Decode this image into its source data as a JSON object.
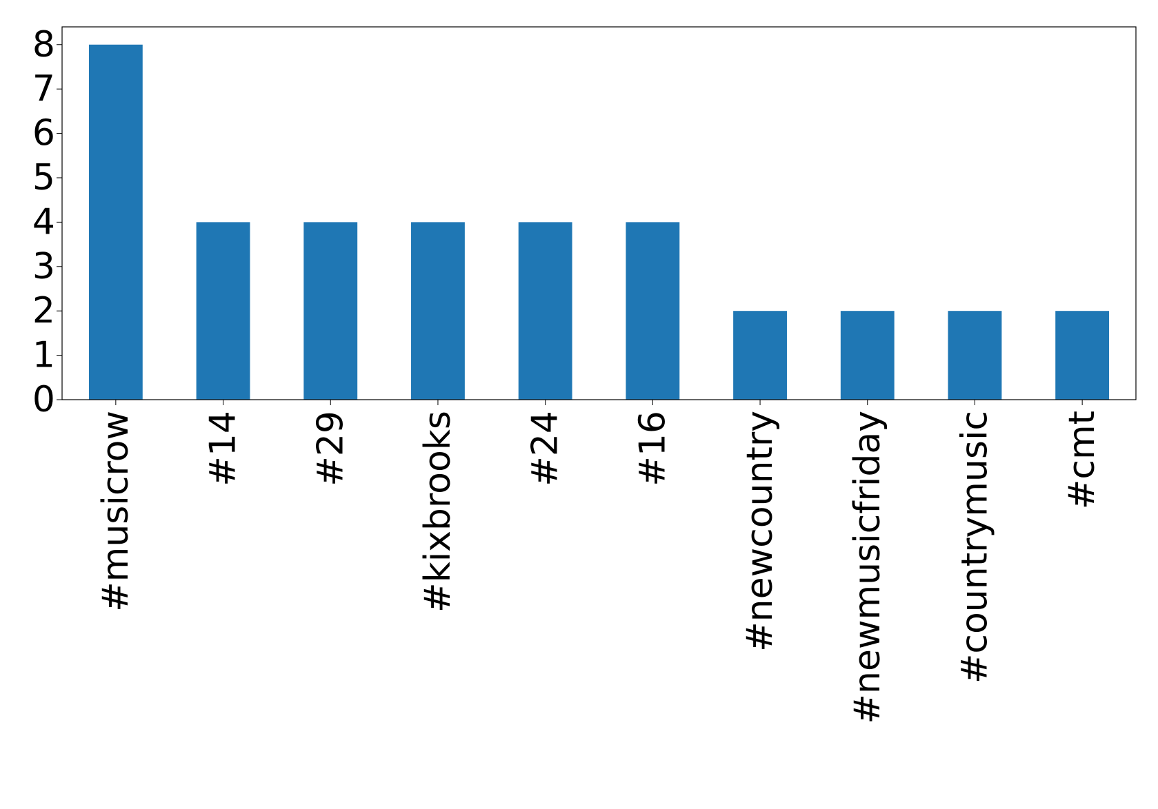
{
  "chart_data": {
    "type": "bar",
    "categories": [
      "#musicrow",
      "#14",
      "#29",
      "#kixbrooks",
      "#24",
      "#16",
      "#newcountry",
      "#newmusicfriday",
      "#countrymusic",
      "#cmt"
    ],
    "values": [
      8,
      4,
      4,
      4,
      4,
      4,
      2,
      2,
      2,
      2
    ],
    "title": "",
    "xlabel": "",
    "ylabel": "",
    "ylim": [
      0,
      8.4
    ],
    "yticks": [
      0,
      1,
      2,
      3,
      4,
      5,
      6,
      7,
      8
    ],
    "grid": false,
    "legend": "none",
    "colors": {
      "bar": "#1f77b4",
      "axis": "#000000"
    }
  }
}
